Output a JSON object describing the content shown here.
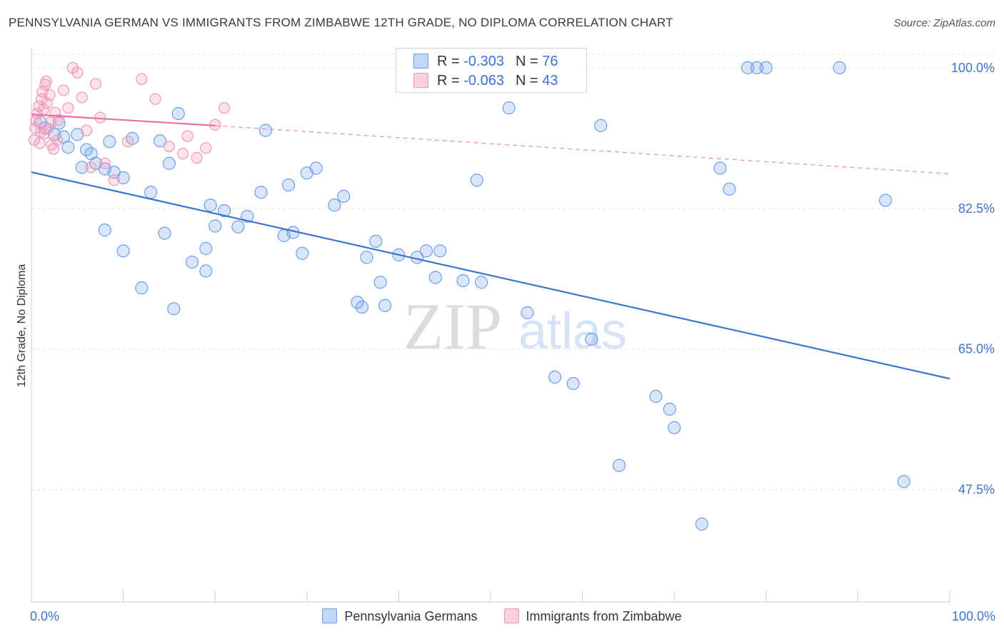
{
  "title": "PENNSYLVANIA GERMAN VS IMMIGRANTS FROM ZIMBABWE 12TH GRADE, NO DIPLOMA CORRELATION CHART",
  "source": "Source: ZipAtlas.com",
  "watermark": {
    "zip": "ZIP",
    "atlas": "atlas"
  },
  "legend": {
    "rows": [
      {
        "r_label": "R =",
        "r_value": "-0.303",
        "n_label": "N =",
        "n_value": "76"
      },
      {
        "r_label": "R =",
        "r_value": "-0.063",
        "n_label": "N =",
        "n_value": "43"
      }
    ]
  },
  "colors": {
    "blue_fill": "rgba(120,165,235,0.28)",
    "blue_stroke": "#6d9de6",
    "blue_line": "#3b74d1",
    "pink_fill": "rgba(245,150,180,0.28)",
    "pink_stroke": "#ef9ab7",
    "pink_line": "#e8709a",
    "tick_label": "#3b74d1",
    "grid": "#e2e2e2"
  },
  "chart_data": {
    "type": "scatter",
    "title": "PENNSYLVANIA GERMAN VS IMMIGRANTS FROM ZIMBABWE 12TH GRADE, NO DIPLOMA CORRELATION CHART",
    "xlabel": "",
    "ylabel": "12th Grade, No Diploma",
    "xlim": [
      0,
      100
    ],
    "ylim": [
      33.5,
      101.5
    ],
    "x_tick_labels": [
      "0.0%",
      "100.0%"
    ],
    "y_ticks": [
      47.5,
      65.0,
      82.5,
      100.0
    ],
    "y_tick_labels": [
      "47.5%",
      "65.0%",
      "82.5%",
      "100.0%"
    ],
    "grid": true,
    "legend_position": "bottom",
    "series": [
      {
        "name": "Pennsylvania Germans",
        "color": "#6d9de6",
        "trend": {
          "x": [
            0,
            100
          ],
          "y": [
            87.0,
            61.3
          ],
          "style": "solid"
        },
        "points": [
          [
            1.0,
            93.2
          ],
          [
            1.5,
            92.5
          ],
          [
            2.5,
            91.7
          ],
          [
            3.0,
            93.1
          ],
          [
            3.5,
            91.4
          ],
          [
            4.0,
            90.1
          ],
          [
            5.0,
            91.7
          ],
          [
            6.0,
            89.8
          ],
          [
            6.5,
            89.3
          ],
          [
            5.5,
            87.6
          ],
          [
            7.0,
            88.1
          ],
          [
            8.0,
            87.4
          ],
          [
            9.0,
            87.0
          ],
          [
            8.5,
            90.8
          ],
          [
            10.0,
            86.3
          ],
          [
            11.0,
            91.2
          ],
          [
            13.0,
            84.5
          ],
          [
            14.0,
            90.9
          ],
          [
            15.0,
            88.1
          ],
          [
            16.0,
            94.3
          ],
          [
            8.0,
            79.8
          ],
          [
            10.0,
            77.2
          ],
          [
            12.0,
            72.6
          ],
          [
            14.5,
            79.4
          ],
          [
            15.5,
            70.0
          ],
          [
            17.5,
            75.8
          ],
          [
            19.0,
            77.5
          ],
          [
            19.5,
            82.9
          ],
          [
            19.0,
            74.7
          ],
          [
            20.0,
            80.3
          ],
          [
            21.0,
            82.2
          ],
          [
            22.5,
            80.2
          ],
          [
            23.5,
            81.5
          ],
          [
            25.0,
            84.5
          ],
          [
            25.5,
            92.2
          ],
          [
            28.0,
            85.4
          ],
          [
            27.5,
            79.1
          ],
          [
            28.5,
            79.5
          ],
          [
            29.5,
            76.9
          ],
          [
            30.0,
            86.9
          ],
          [
            31.0,
            87.5
          ],
          [
            33.0,
            82.9
          ],
          [
            34.0,
            84.0
          ],
          [
            36.0,
            70.2
          ],
          [
            36.5,
            76.4
          ],
          [
            38.0,
            73.3
          ],
          [
            37.5,
            78.4
          ],
          [
            35.5,
            70.8
          ],
          [
            38.5,
            70.4
          ],
          [
            40.0,
            76.7
          ],
          [
            42.0,
            76.4
          ],
          [
            43.0,
            77.2
          ],
          [
            44.0,
            73.9
          ],
          [
            44.5,
            77.2
          ],
          [
            47.0,
            73.5
          ],
          [
            48.5,
            86.0
          ],
          [
            49.0,
            73.3
          ],
          [
            52.0,
            95.0
          ],
          [
            54.0,
            69.5
          ],
          [
            57.0,
            61.5
          ],
          [
            59.0,
            60.7
          ],
          [
            61.0,
            66.2
          ],
          [
            62.0,
            92.8
          ],
          [
            64.0,
            50.5
          ],
          [
            68.0,
            59.1
          ],
          [
            69.5,
            57.5
          ],
          [
            70.0,
            55.2
          ],
          [
            73.0,
            43.2
          ],
          [
            75.0,
            87.5
          ],
          [
            76.0,
            84.9
          ],
          [
            78.0,
            100.0
          ],
          [
            79.0,
            100.0
          ],
          [
            80.0,
            100.0
          ],
          [
            93.0,
            83.5
          ],
          [
            88.0,
            100.0
          ],
          [
            95.0,
            48.5
          ]
        ]
      },
      {
        "name": "Immigrants from Zimbabwe",
        "color": "#ef9ab7",
        "trend": {
          "x": [
            0,
            20
          ],
          "y": [
            94.2,
            92.8
          ],
          "style": "solid",
          "extend_to": 100,
          "extend_y": 86.8,
          "extend_style": "dashed"
        },
        "points": [
          [
            0.3,
            91.0
          ],
          [
            0.4,
            92.5
          ],
          [
            0.5,
            93.4
          ],
          [
            0.6,
            94.3
          ],
          [
            0.8,
            95.2
          ],
          [
            0.9,
            90.6
          ],
          [
            1.0,
            92.0
          ],
          [
            1.1,
            96.1
          ],
          [
            1.2,
            97.0
          ],
          [
            1.3,
            94.8
          ],
          [
            1.4,
            91.8
          ],
          [
            1.5,
            97.9
          ],
          [
            1.6,
            98.3
          ],
          [
            1.7,
            95.6
          ],
          [
            1.8,
            92.4
          ],
          [
            2.0,
            96.6
          ],
          [
            2.1,
            93.2
          ],
          [
            2.2,
            90.4
          ],
          [
            2.4,
            89.9
          ],
          [
            2.6,
            94.4
          ],
          [
            2.8,
            91.0
          ],
          [
            3.0,
            93.5
          ],
          [
            3.5,
            97.2
          ],
          [
            4.0,
            95.0
          ],
          [
            4.5,
            100.0
          ],
          [
            5.0,
            99.4
          ],
          [
            5.5,
            96.3
          ],
          [
            6.0,
            92.2
          ],
          [
            6.5,
            87.6
          ],
          [
            7.0,
            98.0
          ],
          [
            7.5,
            93.8
          ],
          [
            8.0,
            88.1
          ],
          [
            9.0,
            86.0
          ],
          [
            10.5,
            90.8
          ],
          [
            12.0,
            98.6
          ],
          [
            13.5,
            96.1
          ],
          [
            15.0,
            90.2
          ],
          [
            16.5,
            89.3
          ],
          [
            17.0,
            91.5
          ],
          [
            18.0,
            88.8
          ],
          [
            19.0,
            90.0
          ],
          [
            20.0,
            92.9
          ],
          [
            21.0,
            95.0
          ]
        ]
      }
    ]
  },
  "bottom_legend": {
    "items": [
      {
        "label": "Pennsylvania Germans"
      },
      {
        "label": "Immigrants from Zimbabwe"
      }
    ]
  }
}
